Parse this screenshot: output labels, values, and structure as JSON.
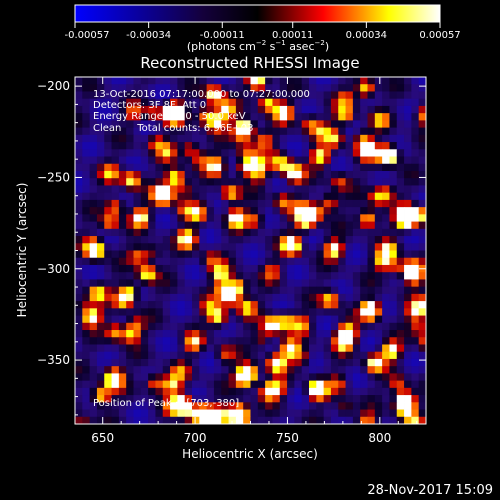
{
  "chart_data": {
    "type": "heatmap",
    "title": "Reconstructed RHESSI Image",
    "xlabel": "Heliocentric X (arcsec)",
    "ylabel": "Heliocentric Y (arcsec)",
    "xlim": [
      635,
      825
    ],
    "ylim": [
      -385,
      -195
    ],
    "x_ticks": [
      650,
      700,
      750,
      800
    ],
    "y_ticks": [
      -200,
      -250,
      -300,
      -350
    ],
    "x_tick_labels": [
      "650",
      "700",
      "750",
      "800"
    ],
    "y_tick_labels": [
      "−200",
      "−250",
      "−300",
      "−350"
    ],
    "grid": false,
    "colorbar": {
      "min": -0.00057,
      "max": 0.00057,
      "ticks": [
        -0.00057,
        -0.00034,
        -0.00011,
        0.00011,
        0.00034,
        0.00057
      ],
      "tick_labels": [
        "-0.00057",
        "-0.00034",
        "-0.00011",
        "0.00011",
        "0.00034",
        "0.00057"
      ],
      "unit_label_parts": [
        "(photons cm",
        "−2",
        " s",
        "−1",
        " asec",
        "−2",
        ")"
      ],
      "colors": [
        "#0000ff",
        "#000000",
        "#ff0000",
        "#ffff00",
        "#ffffff"
      ]
    },
    "annotations": [
      "13-Oct-2016 07:17:00.000 to 07:27:00.000",
      "Detectors: 3F 8F, Att 0",
      "Energy Range: 25.0 - 50.0 keV",
      "Clean     Total counts: 6.96E+03"
    ],
    "peak_label": "Position of Peak = [703,-380]",
    "peak_position": [
      703,
      -380
    ]
  },
  "footer": {
    "timestamp": "28-Nov-2017 15:09"
  }
}
